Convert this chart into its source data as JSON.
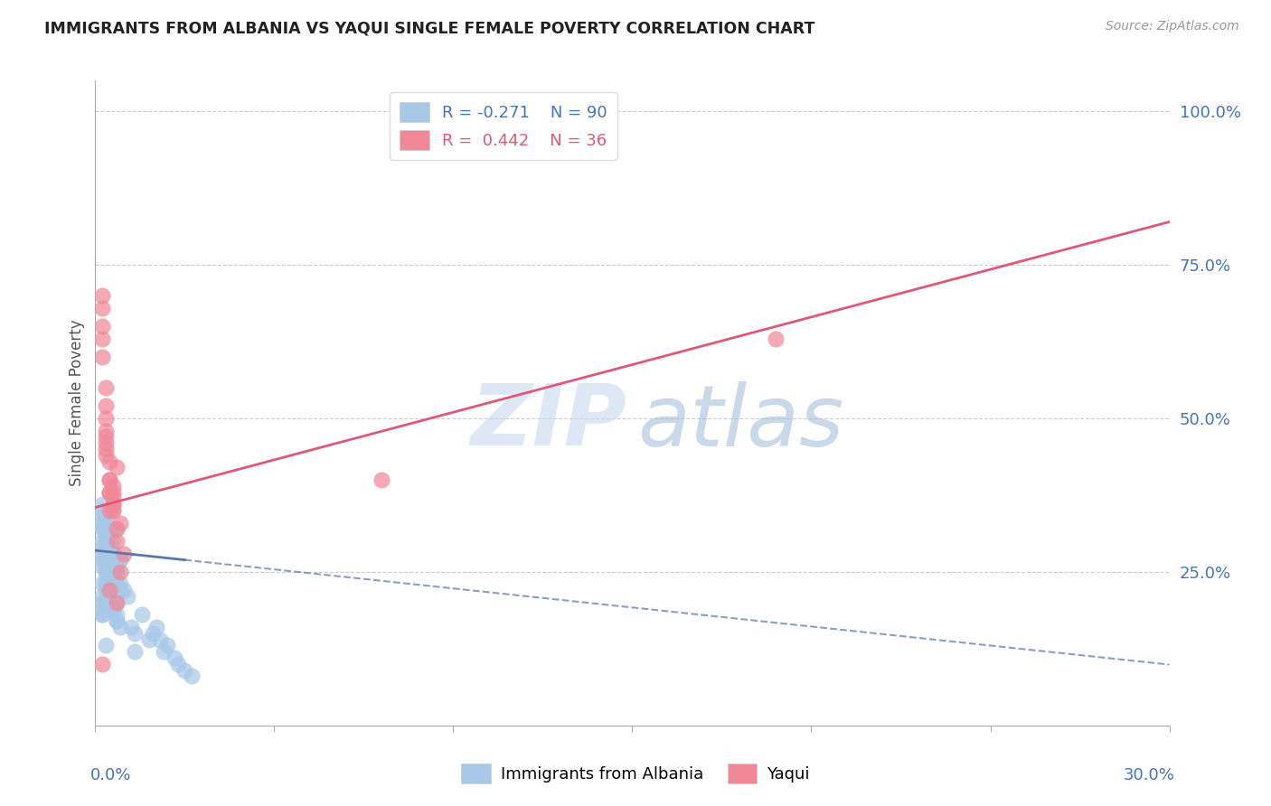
{
  "title": "IMMIGRANTS FROM ALBANIA VS YAQUI SINGLE FEMALE POVERTY CORRELATION CHART",
  "source": "Source: ZipAtlas.com",
  "ylabel": "Single Female Poverty",
  "legend_label1": "Immigrants from Albania",
  "legend_label2": "Yaqui",
  "blue_color": "#a8c8e8",
  "pink_color": "#f08898",
  "blue_line_color": "#5878a8",
  "pink_line_color": "#e05878",
  "blue_text_color": "#4472c4",
  "xmin": 0.0,
  "xmax": 0.3,
  "ymin": 0.0,
  "ymax": 1.05,
  "albania_x": [
    0.004,
    0.006,
    0.005,
    0.003,
    0.007,
    0.004,
    0.005,
    0.003,
    0.006,
    0.004,
    0.003,
    0.005,
    0.002,
    0.004,
    0.006,
    0.003,
    0.002,
    0.007,
    0.004,
    0.003,
    0.002,
    0.003,
    0.004,
    0.005,
    0.002,
    0.003,
    0.004,
    0.002,
    0.003,
    0.005,
    0.006,
    0.003,
    0.002,
    0.004,
    0.003,
    0.002,
    0.005,
    0.003,
    0.004,
    0.002,
    0.007,
    0.004,
    0.003,
    0.002,
    0.005,
    0.004,
    0.003,
    0.002,
    0.006,
    0.003,
    0.004,
    0.002,
    0.003,
    0.005,
    0.004,
    0.003,
    0.002,
    0.008,
    0.004,
    0.003,
    0.005,
    0.006,
    0.004,
    0.003,
    0.002,
    0.007,
    0.004,
    0.003,
    0.002,
    0.005,
    0.009,
    0.004,
    0.003,
    0.002,
    0.006,
    0.004,
    0.01,
    0.003,
    0.005,
    0.002,
    0.011,
    0.004,
    0.003,
    0.015,
    0.006,
    0.004,
    0.003,
    0.002,
    0.007,
    0.011,
    0.013,
    0.018,
    0.016,
    0.02,
    0.022,
    0.025,
    0.019,
    0.017,
    0.023,
    0.027
  ],
  "albania_y": [
    0.28,
    0.32,
    0.3,
    0.25,
    0.27,
    0.29,
    0.35,
    0.22,
    0.26,
    0.31,
    0.2,
    0.24,
    0.33,
    0.28,
    0.25,
    0.3,
    0.18,
    0.27,
    0.22,
    0.29,
    0.26,
    0.32,
    0.24,
    0.28,
    0.19,
    0.3,
    0.27,
    0.23,
    0.31,
    0.25,
    0.2,
    0.28,
    0.34,
    0.26,
    0.29,
    0.21,
    0.27,
    0.33,
    0.24,
    0.3,
    0.22,
    0.28,
    0.25,
    0.32,
    0.19,
    0.26,
    0.3,
    0.27,
    0.23,
    0.29,
    0.21,
    0.35,
    0.28,
    0.24,
    0.31,
    0.26,
    0.2,
    0.22,
    0.29,
    0.33,
    0.25,
    0.18,
    0.27,
    0.3,
    0.36,
    0.23,
    0.28,
    0.26,
    0.32,
    0.19,
    0.21,
    0.27,
    0.24,
    0.29,
    0.17,
    0.25,
    0.16,
    0.23,
    0.2,
    0.18,
    0.15,
    0.22,
    0.19,
    0.14,
    0.17,
    0.21,
    0.13,
    0.28,
    0.16,
    0.12,
    0.18,
    0.14,
    0.15,
    0.13,
    0.11,
    0.09,
    0.12,
    0.16,
    0.1,
    0.08
  ],
  "yaqui_x": [
    0.003,
    0.004,
    0.002,
    0.005,
    0.003,
    0.002,
    0.004,
    0.006,
    0.003,
    0.005,
    0.002,
    0.004,
    0.007,
    0.003,
    0.005,
    0.002,
    0.006,
    0.004,
    0.003,
    0.008,
    0.005,
    0.003,
    0.004,
    0.006,
    0.002,
    0.004,
    0.003,
    0.005,
    0.007,
    0.003,
    0.002,
    0.005,
    0.19,
    0.004,
    0.08,
    0.006
  ],
  "yaqui_y": [
    0.45,
    0.4,
    0.7,
    0.38,
    0.47,
    0.65,
    0.35,
    0.42,
    0.55,
    0.36,
    0.6,
    0.38,
    0.33,
    0.5,
    0.37,
    0.63,
    0.3,
    0.43,
    0.52,
    0.28,
    0.36,
    0.48,
    0.4,
    0.32,
    0.68,
    0.38,
    0.44,
    0.35,
    0.25,
    0.46,
    0.1,
    0.39,
    0.63,
    0.22,
    0.4,
    0.2
  ],
  "pink_line_intercept": 0.355,
  "pink_line_slope": 1.55,
  "blue_line_intercept": 0.285,
  "blue_line_slope": -0.62
}
